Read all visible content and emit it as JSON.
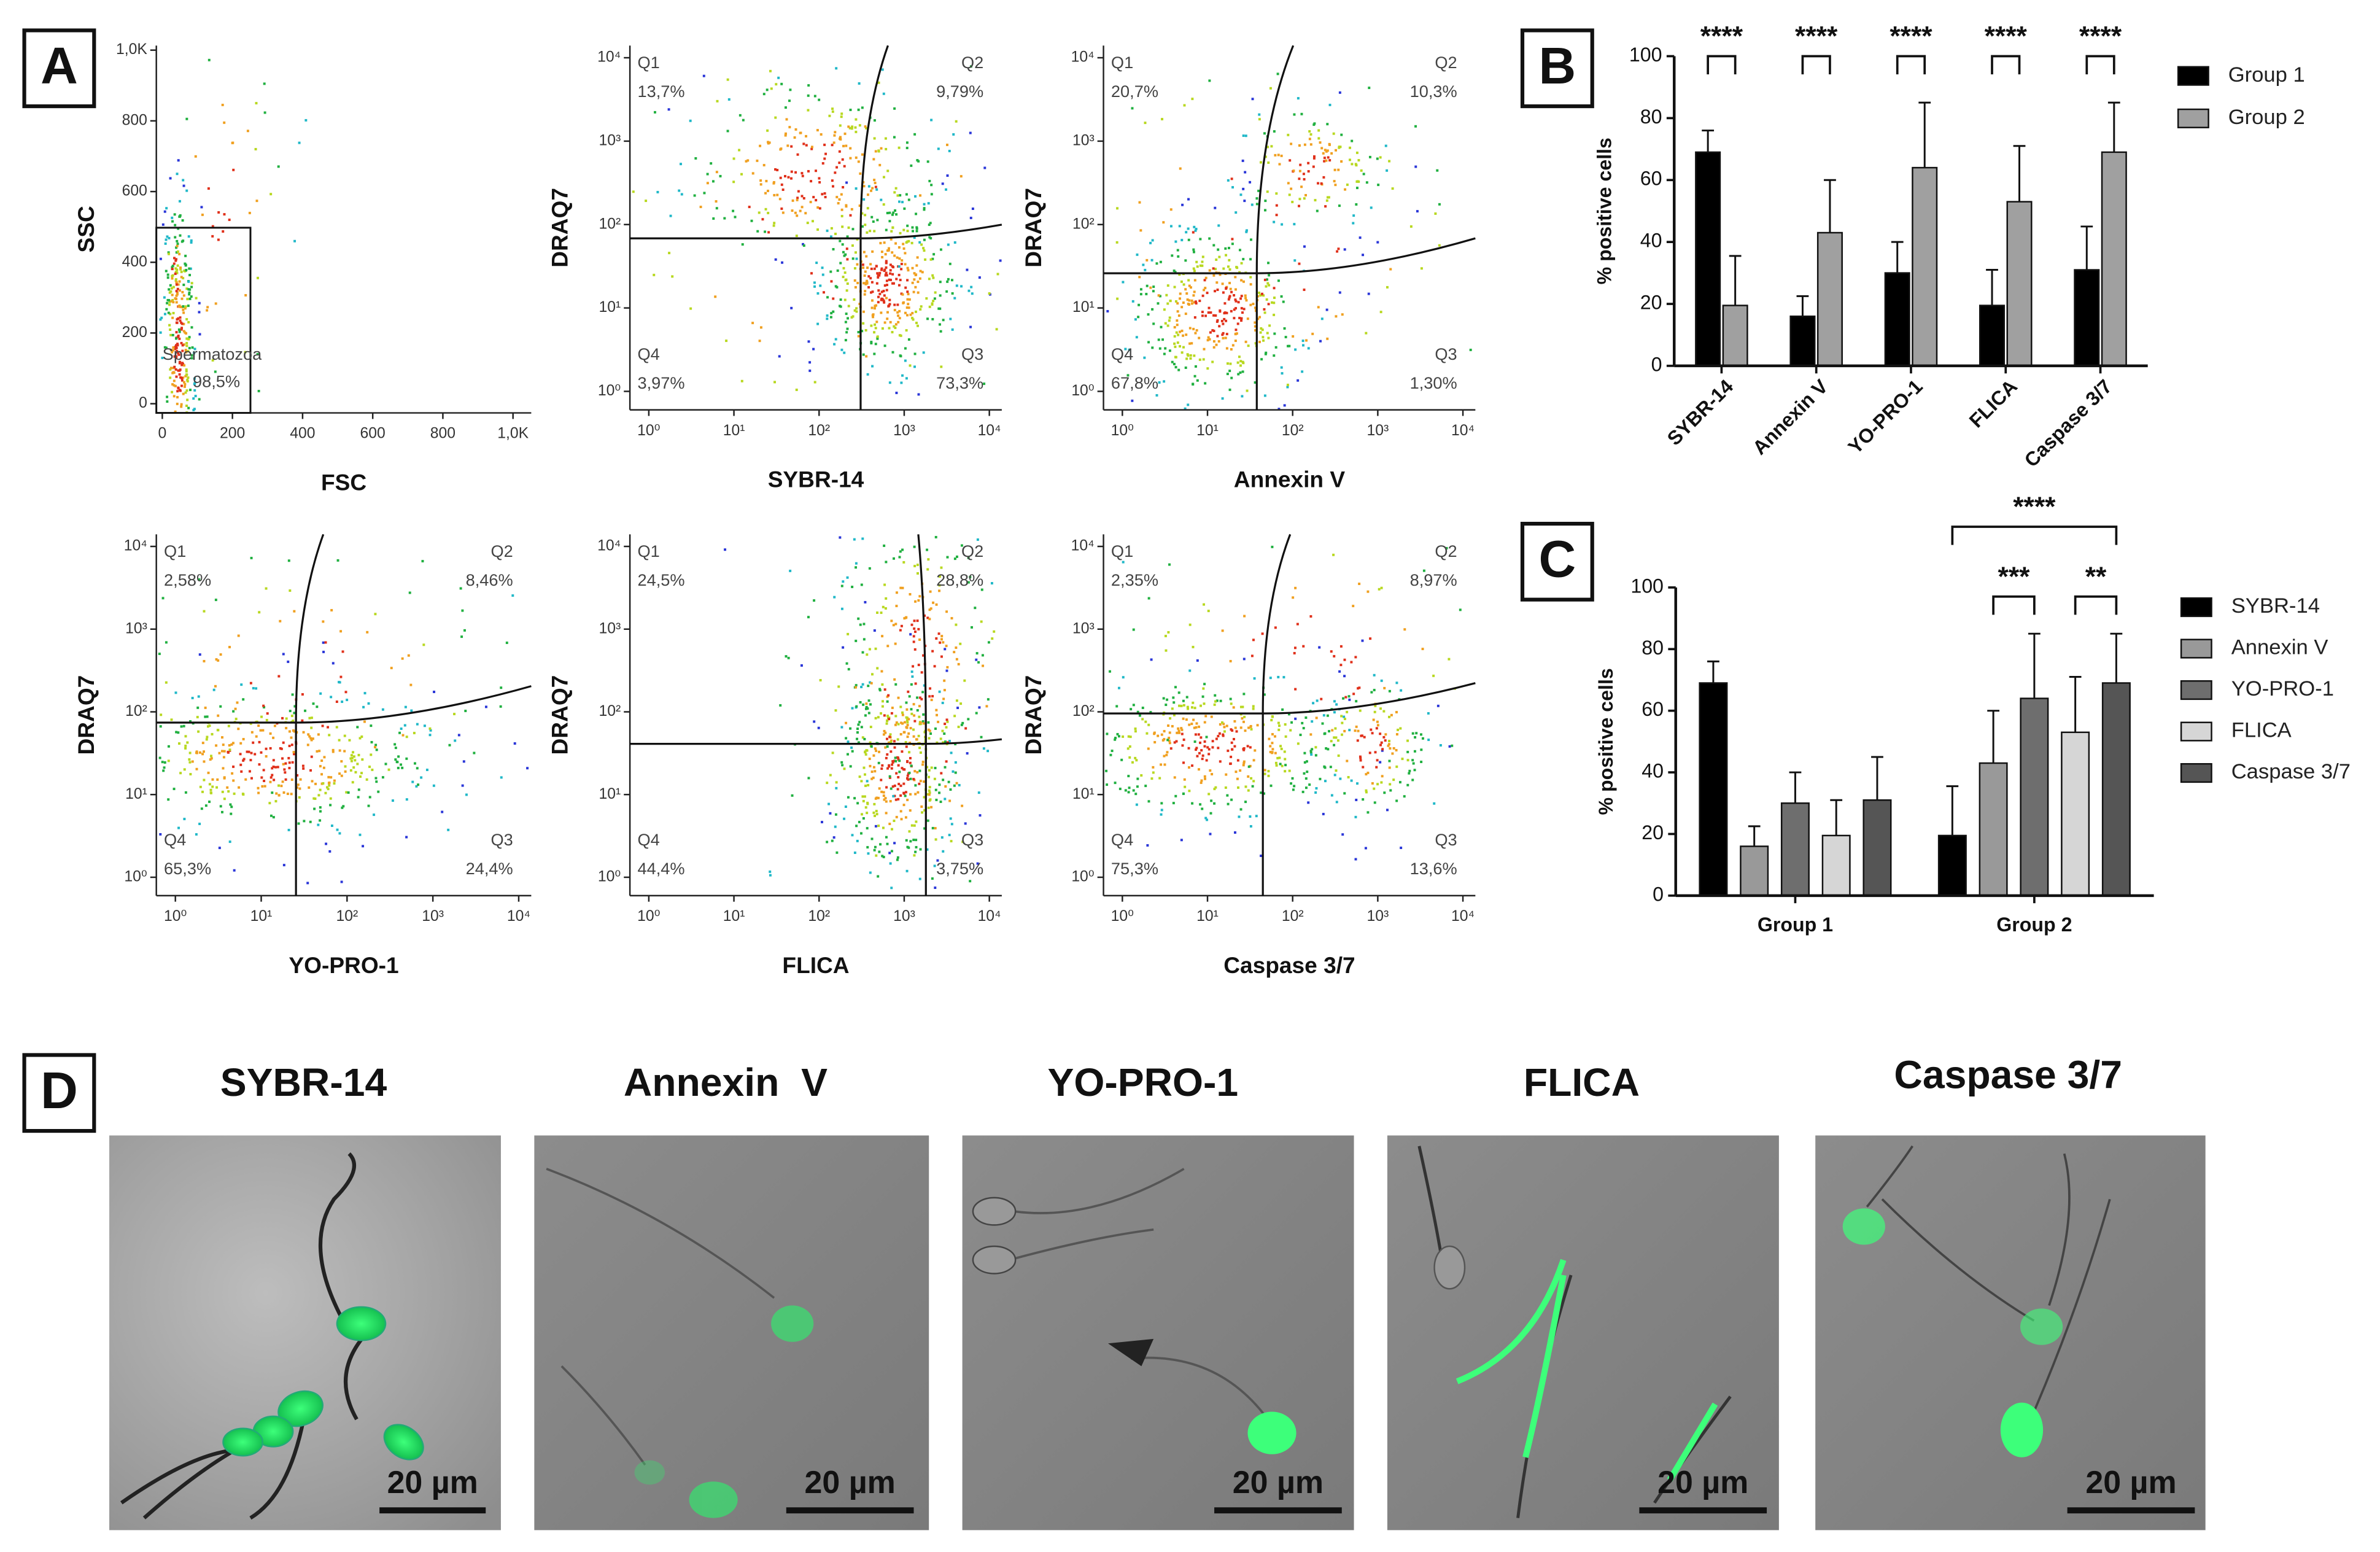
{
  "panel_labels": [
    "A",
    "B",
    "C",
    "D"
  ],
  "chart_data": [
    {
      "type": "scatter",
      "xlabel": "FSC",
      "ylabel": "SSC",
      "xlim": [
        -17,
        1052
      ],
      "ylim": [
        -26,
        1013
      ],
      "xticks": [
        0,
        200,
        400,
        600,
        800,
        {
          "value": 1000,
          "label": "1,0K"
        }
      ],
      "yticks": [
        0,
        200,
        400,
        600,
        800,
        {
          "value": 1000,
          "label": "1,0K"
        }
      ],
      "gate": {
        "name": "Spermatozoa",
        "percent": "98,5%"
      }
    },
    {
      "type": "scatter",
      "log_scale": true,
      "xlabel": "SYBR-14",
      "ylabel": "DRAQ7",
      "xlim": [
        0.6,
        14000
      ],
      "ylim": [
        0.6,
        14000
      ],
      "xticks": [
        {
          "value": 1,
          "label": "10⁰"
        },
        {
          "value": 10,
          "label": "10¹"
        },
        {
          "value": 100,
          "label": "10²"
        },
        {
          "value": 1000,
          "label": "10³"
        },
        {
          "value": 10000,
          "label": "10⁴"
        }
      ],
      "yticks": [
        {
          "value": 1,
          "label": "10⁰"
        },
        {
          "value": 10,
          "label": "10¹"
        },
        {
          "value": 100,
          "label": "10²"
        },
        {
          "value": 1000,
          "label": "10³"
        },
        {
          "value": 10000,
          "label": "10⁴"
        }
      ],
      "quadrants": [
        {
          "name": "Q1",
          "percent": "13,7%"
        },
        {
          "name": "Q2",
          "percent": "9,79%"
        },
        {
          "name": "Q3",
          "percent": "73,3%"
        },
        {
          "name": "Q4",
          "percent": "3,97%"
        }
      ]
    },
    {
      "type": "scatter",
      "log_scale": true,
      "xlabel": "Annexin V",
      "ylabel": "DRAQ7",
      "xlim": [
        0.6,
        14000
      ],
      "ylim": [
        0.6,
        14000
      ],
      "xticks": [
        {
          "value": 1,
          "label": "10⁰"
        },
        {
          "value": 10,
          "label": "10¹"
        },
        {
          "value": 100,
          "label": "10²"
        },
        {
          "value": 1000,
          "label": "10³"
        },
        {
          "value": 10000,
          "label": "10⁴"
        }
      ],
      "yticks": [
        {
          "value": 1,
          "label": "10⁰"
        },
        {
          "value": 10,
          "label": "10¹"
        },
        {
          "value": 100,
          "label": "10²"
        },
        {
          "value": 1000,
          "label": "10³"
        },
        {
          "value": 10000,
          "label": "10⁴"
        }
      ],
      "quadrants": [
        {
          "name": "Q1",
          "percent": "20,7%"
        },
        {
          "name": "Q2",
          "percent": "10,3%"
        },
        {
          "name": "Q3",
          "percent": "1,30%"
        },
        {
          "name": "Q4",
          "percent": "67,8%"
        }
      ]
    },
    {
      "type": "scatter",
      "log_scale": true,
      "xlabel": "YO-PRO-1",
      "ylabel": "DRAQ7",
      "xlim": [
        0.6,
        14000
      ],
      "ylim": [
        0.6,
        14000
      ],
      "xticks": [
        {
          "value": 1,
          "label": "10⁰"
        },
        {
          "value": 10,
          "label": "10¹"
        },
        {
          "value": 100,
          "label": "10²"
        },
        {
          "value": 1000,
          "label": "10³"
        },
        {
          "value": 10000,
          "label": "10⁴"
        }
      ],
      "yticks": [
        {
          "value": 1,
          "label": "10⁰"
        },
        {
          "value": 10,
          "label": "10¹"
        },
        {
          "value": 100,
          "label": "10²"
        },
        {
          "value": 1000,
          "label": "10³"
        },
        {
          "value": 10000,
          "label": "10⁴"
        }
      ],
      "quadrants": [
        {
          "name": "Q1",
          "percent": "2,58%"
        },
        {
          "name": "Q2",
          "percent": "8,46%"
        },
        {
          "name": "Q3",
          "percent": "24,4%"
        },
        {
          "name": "Q4",
          "percent": "65,3%"
        }
      ]
    },
    {
      "type": "scatter",
      "log_scale": true,
      "xlabel": "FLICA",
      "ylabel": "DRAQ7",
      "xlim": [
        0.6,
        14000
      ],
      "ylim": [
        0.6,
        14000
      ],
      "xticks": [
        {
          "value": 1,
          "label": "10⁰"
        },
        {
          "value": 10,
          "label": "10¹"
        },
        {
          "value": 100,
          "label": "10²"
        },
        {
          "value": 1000,
          "label": "10³"
        },
        {
          "value": 10000,
          "label": "10⁴"
        }
      ],
      "yticks": [
        {
          "value": 1,
          "label": "10⁰"
        },
        {
          "value": 10,
          "label": "10¹"
        },
        {
          "value": 100,
          "label": "10²"
        },
        {
          "value": 1000,
          "label": "10³"
        },
        {
          "value": 10000,
          "label": "10⁴"
        }
      ],
      "quadrants": [
        {
          "name": "Q1",
          "percent": "24,5%"
        },
        {
          "name": "Q2",
          "percent": "28,8%"
        },
        {
          "name": "Q3",
          "percent": "3,75%"
        },
        {
          "name": "Q4",
          "percent": "44,4%"
        }
      ]
    },
    {
      "type": "scatter",
      "log_scale": true,
      "xlabel": "Caspase 3/7",
      "ylabel": "DRAQ7",
      "xlim": [
        0.6,
        14000
      ],
      "ylim": [
        0.6,
        14000
      ],
      "xticks": [
        {
          "value": 1,
          "label": "10⁰"
        },
        {
          "value": 10,
          "label": "10¹"
        },
        {
          "value": 100,
          "label": "10²"
        },
        {
          "value": 1000,
          "label": "10³"
        },
        {
          "value": 10000,
          "label": "10⁴"
        }
      ],
      "yticks": [
        {
          "value": 1,
          "label": "10⁰"
        },
        {
          "value": 10,
          "label": "10¹"
        },
        {
          "value": 100,
          "label": "10²"
        },
        {
          "value": 1000,
          "label": "10³"
        },
        {
          "value": 10000,
          "label": "10⁴"
        }
      ],
      "quadrants": [
        {
          "name": "Q1",
          "percent": "2,35%"
        },
        {
          "name": "Q2",
          "percent": "8,97%"
        },
        {
          "name": "Q3",
          "percent": "13,6%"
        },
        {
          "name": "Q4",
          "percent": "75,3%"
        }
      ]
    },
    {
      "type": "bar",
      "ylabel": "% positive cells",
      "ylim": [
        0,
        100
      ],
      "yticks": [
        0,
        20,
        40,
        60,
        80,
        100
      ],
      "categories": [
        "SYBR-14",
        "Annexin V",
        "YO-PRO-1",
        "FLICA",
        "Caspase 3/7"
      ],
      "series": [
        {
          "name": "Group 1",
          "color": "#000000",
          "values": [
            69,
            16,
            30,
            19.5,
            31
          ],
          "errors": [
            7,
            6.5,
            10,
            11.5,
            14
          ]
        },
        {
          "name": "Group 2",
          "color": "#a0a0a0",
          "values": [
            19.5,
            43,
            64,
            53,
            69
          ],
          "errors": [
            16,
            17,
            21,
            18,
            16
          ]
        }
      ],
      "significance": [
        "****",
        "****",
        "****",
        "****",
        "****"
      ]
    },
    {
      "type": "bar",
      "ylabel": "% positive cells",
      "ylim": [
        0,
        100
      ],
      "yticks": [
        0,
        20,
        40,
        60,
        80,
        100
      ],
      "categories": [
        "Group 1",
        "Group 2"
      ],
      "series": [
        {
          "name": "SYBR-14",
          "color": "#000000",
          "values": [
            69,
            19.5
          ],
          "errors": [
            7,
            16
          ]
        },
        {
          "name": "Annexin V",
          "color": "#999999",
          "values": [
            16,
            43
          ],
          "errors": [
            6.5,
            17
          ]
        },
        {
          "name": "YO-PRO-1",
          "color": "#6e6e6e",
          "values": [
            30,
            64
          ],
          "errors": [
            10,
            21
          ]
        },
        {
          "name": "FLICA",
          "color": "#d6d6d6",
          "values": [
            19.5,
            53
          ],
          "errors": [
            11.5,
            18
          ]
        },
        {
          "name": "Caspase 3/7",
          "color": "#555555",
          "values": [
            31,
            69
          ],
          "errors": [
            14,
            16
          ]
        }
      ],
      "significance": [
        "****",
        "***",
        "**"
      ]
    }
  ],
  "micrographs": [
    {
      "title": "SYBR-14",
      "scale_bar": "20 µm"
    },
    {
      "title": "Annexin  V",
      "scale_bar": "20 µm"
    },
    {
      "title": "YO-PRO-1",
      "scale_bar": "20 µm"
    },
    {
      "title": "FLICA",
      "scale_bar": "20 µm"
    },
    {
      "title": "Caspase 3/7",
      "scale_bar": "20 µm"
    }
  ]
}
